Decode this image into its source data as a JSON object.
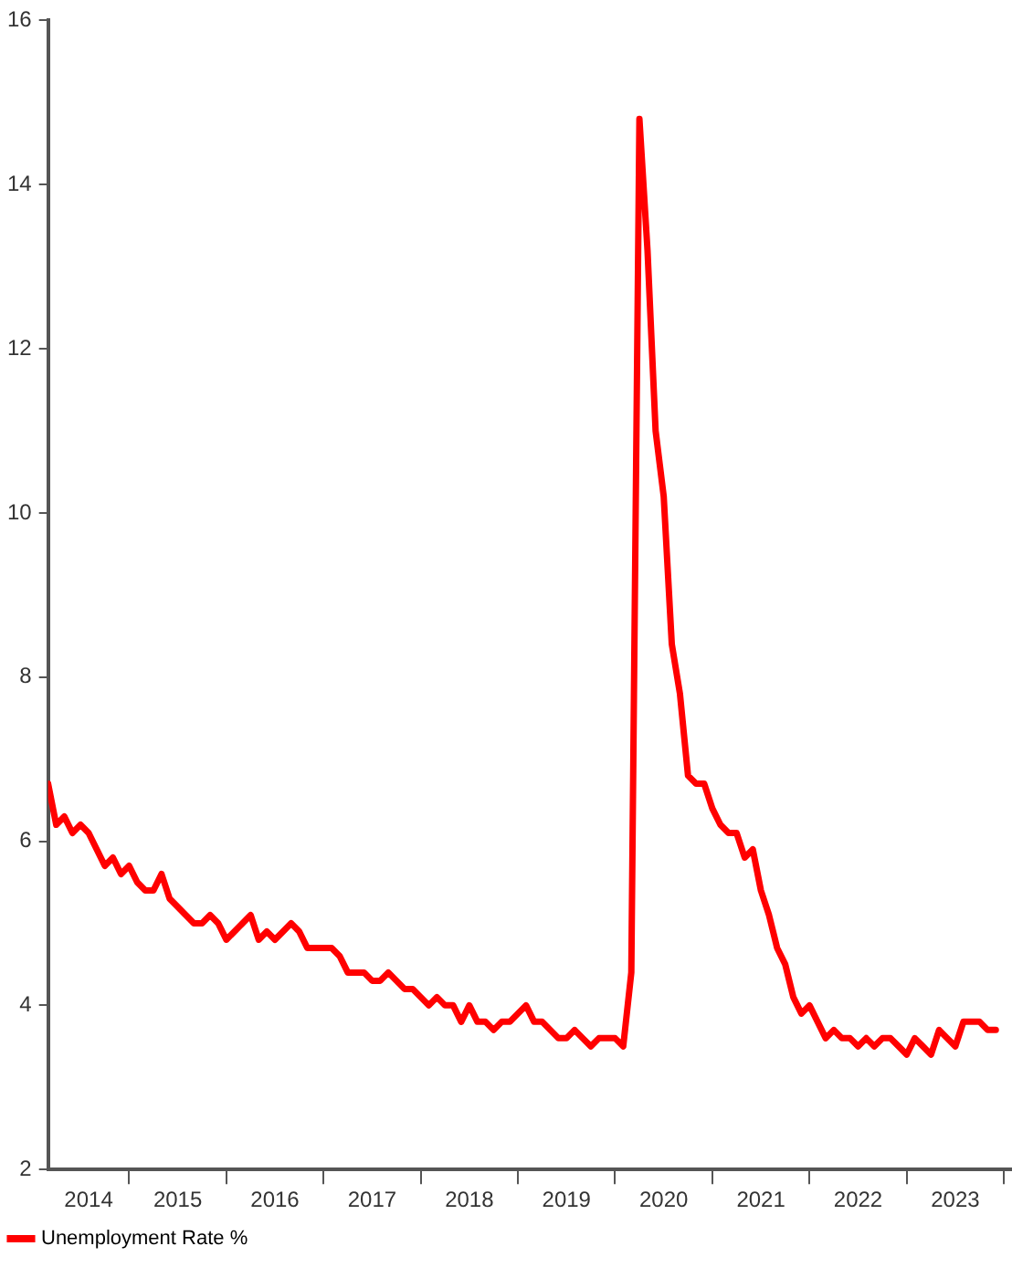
{
  "chart_data": {
    "type": "line",
    "x": [
      "2014-03",
      "2014-04",
      "2014-05",
      "2014-06",
      "2014-07",
      "2014-08",
      "2014-09",
      "2014-10",
      "2014-11",
      "2014-12",
      "2015-01",
      "2015-02",
      "2015-03",
      "2015-04",
      "2015-05",
      "2015-06",
      "2015-07",
      "2015-08",
      "2015-09",
      "2015-10",
      "2015-11",
      "2015-12",
      "2016-01",
      "2016-02",
      "2016-03",
      "2016-04",
      "2016-05",
      "2016-06",
      "2016-07",
      "2016-08",
      "2016-09",
      "2016-10",
      "2016-11",
      "2016-12",
      "2017-01",
      "2017-02",
      "2017-03",
      "2017-04",
      "2017-05",
      "2017-06",
      "2017-07",
      "2017-08",
      "2017-09",
      "2017-10",
      "2017-11",
      "2017-12",
      "2018-01",
      "2018-02",
      "2018-03",
      "2018-04",
      "2018-05",
      "2018-06",
      "2018-07",
      "2018-08",
      "2018-09",
      "2018-10",
      "2018-11",
      "2018-12",
      "2019-01",
      "2019-02",
      "2019-03",
      "2019-04",
      "2019-05",
      "2019-06",
      "2019-07",
      "2019-08",
      "2019-09",
      "2019-10",
      "2019-11",
      "2019-12",
      "2020-01",
      "2020-02",
      "2020-03",
      "2020-04",
      "2020-05",
      "2020-06",
      "2020-07",
      "2020-08",
      "2020-09",
      "2020-10",
      "2020-11",
      "2020-12",
      "2021-01",
      "2021-02",
      "2021-03",
      "2021-04",
      "2021-05",
      "2021-06",
      "2021-07",
      "2021-08",
      "2021-09",
      "2021-10",
      "2021-11",
      "2021-12",
      "2022-01",
      "2022-02",
      "2022-03",
      "2022-04",
      "2022-05",
      "2022-06",
      "2022-07",
      "2022-08",
      "2022-09",
      "2022-10",
      "2022-11",
      "2022-12",
      "2023-01",
      "2023-02",
      "2023-03",
      "2023-04",
      "2023-05",
      "2023-06",
      "2023-07",
      "2023-08",
      "2023-09",
      "2023-10",
      "2023-11",
      "2023-12"
    ],
    "series": [
      {
        "name": "Unemployment Rate %",
        "color": "#ff0000",
        "values": [
          6.7,
          6.2,
          6.3,
          6.1,
          6.2,
          6.1,
          5.9,
          5.7,
          5.8,
          5.6,
          5.7,
          5.5,
          5.4,
          5.4,
          5.6,
          5.3,
          5.2,
          5.1,
          5.0,
          5.0,
          5.1,
          5.0,
          4.8,
          4.9,
          5.0,
          5.1,
          4.8,
          4.9,
          4.8,
          4.9,
          5.0,
          4.9,
          4.7,
          4.7,
          4.7,
          4.7,
          4.6,
          4.4,
          4.4,
          4.4,
          4.3,
          4.3,
          4.4,
          4.3,
          4.2,
          4.2,
          4.1,
          4.0,
          4.1,
          4.0,
          4.0,
          3.8,
          4.0,
          3.8,
          3.8,
          3.7,
          3.8,
          3.8,
          3.9,
          4.0,
          3.8,
          3.8,
          3.7,
          3.6,
          3.6,
          3.7,
          3.6,
          3.5,
          3.6,
          3.6,
          3.6,
          3.5,
          4.4,
          14.8,
          13.2,
          11.0,
          10.2,
          8.4,
          7.8,
          6.8,
          6.7,
          6.7,
          6.4,
          6.2,
          6.1,
          6.1,
          5.8,
          5.9,
          5.4,
          5.1,
          4.7,
          4.5,
          4.1,
          3.9,
          4.0,
          3.8,
          3.6,
          3.7,
          3.6,
          3.6,
          3.5,
          3.6,
          3.5,
          3.6,
          3.6,
          3.5,
          3.4,
          3.6,
          3.5,
          3.4,
          3.7,
          3.6,
          3.5,
          3.8,
          3.8,
          3.8,
          3.7,
          3.7
        ]
      }
    ],
    "xlim": [
      "2014-03",
      "2024-02"
    ],
    "xticks": [
      {
        "value": "2014-08",
        "label": "2014"
      },
      {
        "value": "2015-01",
        "label": null
      },
      {
        "value": "2015-07",
        "label": "2015"
      },
      {
        "value": "2016-01",
        "label": null
      },
      {
        "value": "2016-07",
        "label": "2016"
      },
      {
        "value": "2017-01",
        "label": null
      },
      {
        "value": "2017-07",
        "label": "2017"
      },
      {
        "value": "2018-01",
        "label": null
      },
      {
        "value": "2018-07",
        "label": "2018"
      },
      {
        "value": "2019-01",
        "label": null
      },
      {
        "value": "2019-07",
        "label": "2019"
      },
      {
        "value": "2020-01",
        "label": null
      },
      {
        "value": "2020-07",
        "label": "2020"
      },
      {
        "value": "2021-01",
        "label": null
      },
      {
        "value": "2021-07",
        "label": "2021"
      },
      {
        "value": "2022-01",
        "label": null
      },
      {
        "value": "2022-07",
        "label": "2022"
      },
      {
        "value": "2023-01",
        "label": null
      },
      {
        "value": "2023-07",
        "label": "2023"
      },
      {
        "value": "2024-01",
        "label": null
      }
    ],
    "ylim": [
      2,
      16
    ],
    "yticks": [
      2,
      4,
      6,
      8,
      10,
      12,
      14,
      16
    ],
    "grid": false,
    "legend": "bottom left",
    "marker": "none",
    "line_style": "solid"
  }
}
